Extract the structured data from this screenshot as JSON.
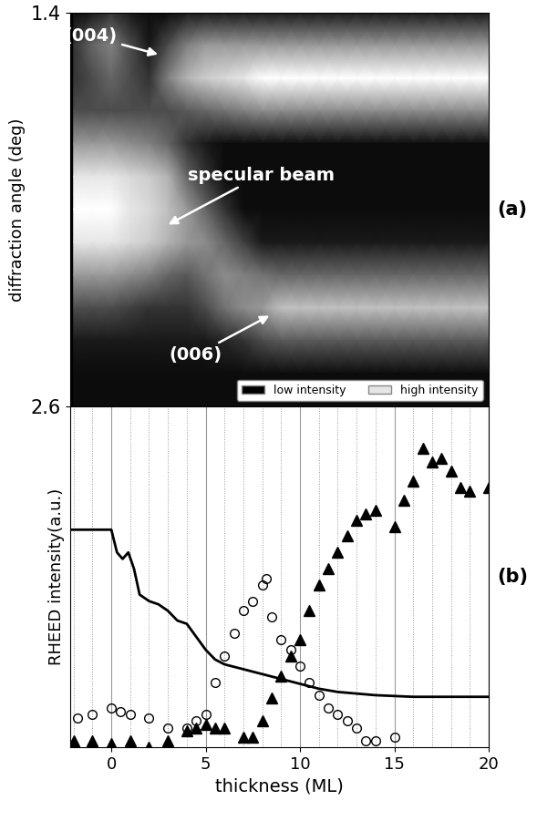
{
  "chart_data": [
    {
      "type": "heatmap",
      "panel_label": "(a)",
      "ylabel": "diffraction angle (deg)",
      "xlim": [
        -2.2,
        20
      ],
      "ylim": [
        2.6,
        1.4
      ],
      "yticks": [
        1.4,
        2.6
      ],
      "tick_labels": "y",
      "x": [
        -2,
        -1,
        0,
        1,
        2,
        3,
        4,
        5,
        6,
        7,
        8,
        9,
        10,
        11,
        12,
        13,
        14,
        15,
        16,
        17,
        18,
        19,
        20
      ],
      "y": [
        1.4,
        1.5,
        1.6,
        1.7,
        1.8,
        1.9,
        2.0,
        2.1,
        2.2,
        2.3,
        2.4,
        2.5,
        2.6
      ],
      "cells": [
        [
          0.05,
          0.1,
          0.2,
          0.1,
          0.05,
          0.05,
          0.1,
          0.1,
          0.1,
          0.1,
          0.1,
          0.1,
          0.1,
          0.1,
          0.1,
          0.1,
          0.1,
          0.1,
          0.1,
          0.1,
          0.1,
          0.1,
          0.1
        ],
        [
          0.2,
          0.4,
          0.5,
          0.3,
          0.1,
          0.3,
          0.5,
          0.6,
          0.6,
          0.6,
          0.6,
          0.6,
          0.6,
          0.6,
          0.6,
          0.6,
          0.6,
          0.6,
          0.6,
          0.6,
          0.6,
          0.6,
          0.6
        ],
        [
          0.2,
          0.3,
          0.4,
          0.3,
          0.2,
          0.5,
          0.7,
          0.8,
          0.85,
          0.9,
          1.0,
          1.0,
          1.0,
          1.0,
          1.0,
          1.0,
          1.0,
          1.0,
          1.0,
          1.0,
          1.0,
          1.0,
          1.0
        ],
        [
          0.3,
          0.3,
          0.3,
          0.3,
          0.3,
          0.3,
          0.35,
          0.4,
          0.45,
          0.5,
          0.55,
          0.55,
          0.55,
          0.55,
          0.55,
          0.55,
          0.55,
          0.55,
          0.55,
          0.55,
          0.55,
          0.55,
          0.55
        ],
        [
          0.6,
          0.6,
          0.6,
          0.55,
          0.5,
          0.4,
          0.2,
          0.1,
          0.05,
          0.05,
          0.05,
          0.05,
          0.05,
          0.05,
          0.05,
          0.05,
          0.05,
          0.05,
          0.05,
          0.05,
          0.05,
          0.05,
          0.05
        ],
        [
          0.9,
          0.9,
          0.9,
          0.85,
          0.8,
          0.7,
          0.4,
          0.2,
          0.05,
          0.05,
          0.05,
          0.05,
          0.05,
          0.05,
          0.05,
          0.05,
          0.05,
          0.05,
          0.05,
          0.05,
          0.05,
          0.05,
          0.05
        ],
        [
          1.0,
          1.0,
          1.0,
          0.9,
          0.85,
          0.75,
          0.6,
          0.4,
          0.2,
          0.05,
          0.05,
          0.05,
          0.05,
          0.05,
          0.05,
          0.05,
          0.05,
          0.05,
          0.05,
          0.05,
          0.05,
          0.05,
          0.05
        ],
        [
          0.9,
          0.9,
          0.9,
          0.85,
          0.8,
          0.7,
          0.6,
          0.55,
          0.4,
          0.25,
          0.1,
          0.1,
          0.1,
          0.1,
          0.1,
          0.1,
          0.1,
          0.1,
          0.1,
          0.1,
          0.1,
          0.1,
          0.1
        ],
        [
          0.6,
          0.6,
          0.6,
          0.55,
          0.5,
          0.4,
          0.35,
          0.45,
          0.55,
          0.5,
          0.45,
          0.4,
          0.4,
          0.4,
          0.4,
          0.4,
          0.4,
          0.4,
          0.4,
          0.4,
          0.4,
          0.4,
          0.4
        ],
        [
          0.3,
          0.3,
          0.3,
          0.25,
          0.2,
          0.2,
          0.2,
          0.3,
          0.45,
          0.55,
          0.6,
          0.75,
          0.75,
          0.75,
          0.75,
          0.75,
          0.75,
          0.75,
          0.75,
          0.75,
          0.75,
          0.75,
          0.75
        ],
        [
          0.1,
          0.1,
          0.1,
          0.1,
          0.1,
          0.1,
          0.1,
          0.1,
          0.15,
          0.2,
          0.3,
          0.35,
          0.35,
          0.35,
          0.35,
          0.35,
          0.35,
          0.35,
          0.35,
          0.35,
          0.35,
          0.35,
          0.35
        ],
        [
          0.05,
          0.05,
          0.05,
          0.05,
          0.05,
          0.05,
          0.05,
          0.05,
          0.05,
          0.05,
          0.05,
          0.05,
          0.05,
          0.05,
          0.05,
          0.05,
          0.05,
          0.05,
          0.05,
          0.05,
          0.05,
          0.05,
          0.05
        ],
        [
          0.05,
          0.05,
          0.05,
          0.05,
          0.05,
          0.05,
          0.05,
          0.05,
          0.05,
          0.05,
          0.05,
          0.05,
          0.05,
          0.05,
          0.05,
          0.05,
          0.05,
          0.05,
          0.05,
          0.05,
          0.05,
          0.05,
          0.05
        ]
      ],
      "color_range": [
        0,
        1
      ],
      "annotations": [
        {
          "text": "(004)",
          "x": 2.6,
          "y": 1.53
        },
        {
          "text": "specular beam",
          "x": 2.9,
          "y": 2.05
        },
        {
          "text": "(006)",
          "x": 8.5,
          "y": 2.32
        }
      ],
      "legend": "lower right",
      "legend_entries": [
        {
          "name": "low intensity",
          "color": "#000000"
        },
        {
          "name": "high intensity",
          "color": "#e6e6e6"
        }
      ]
    },
    {
      "type": "line",
      "panel_label": "(b)",
      "xlabel": "thickness (ML)",
      "ylabel": "RHEED intensity(a.u.)",
      "xlim": [
        -2.2,
        20
      ],
      "ylim": [
        0,
        1.05
      ],
      "xticks": [
        0,
        5,
        10,
        15,
        20
      ],
      "tick_labels": "x",
      "grid": true,
      "series": [
        {
          "type": "line",
          "color": "#000000",
          "x": [
            -2.2,
            -1,
            0,
            0.3,
            0.6,
            0.9,
            1.2,
            1.5,
            2,
            2.5,
            3,
            3.5,
            4,
            4.5,
            5,
            5.5,
            6,
            7,
            8,
            9,
            10,
            11,
            12,
            14,
            16,
            18,
            20
          ],
          "values": [
            0.67,
            0.67,
            0.67,
            0.6,
            0.58,
            0.6,
            0.55,
            0.47,
            0.45,
            0.44,
            0.42,
            0.39,
            0.38,
            0.34,
            0.3,
            0.27,
            0.255,
            0.24,
            0.225,
            0.21,
            0.195,
            0.18,
            0.17,
            0.16,
            0.155,
            0.155,
            0.155
          ]
        },
        {
          "type": "scatter",
          "marker": "open_circle",
          "color": "#000000",
          "x": [
            -1.8,
            -1,
            0,
            0.5,
            1,
            2,
            3,
            4,
            4.5,
            5,
            5.5,
            6,
            6.5,
            7,
            7.5,
            8,
            8.2,
            8.5,
            9,
            9.5,
            10,
            10.5,
            11,
            11.5,
            12,
            12.5,
            13,
            13.5,
            14,
            15
          ],
          "values": [
            0.09,
            0.1,
            0.12,
            0.11,
            0.1,
            0.09,
            0.06,
            0.06,
            0.08,
            0.1,
            0.2,
            0.28,
            0.35,
            0.42,
            0.45,
            0.5,
            0.52,
            0.4,
            0.33,
            0.3,
            0.25,
            0.2,
            0.16,
            0.12,
            0.1,
            0.08,
            0.06,
            0.02,
            0.02,
            0.03
          ]
        },
        {
          "type": "scatter",
          "marker": "triangle",
          "color": "#000000",
          "x": [
            -2,
            -1,
            0,
            1,
            2,
            3,
            4,
            4.5,
            5,
            5.5,
            6,
            7,
            7.5,
            8,
            8.5,
            9,
            9.5,
            10,
            10.5,
            11,
            11.5,
            12,
            12.5,
            13,
            13.5,
            14,
            15,
            15.5,
            16,
            16.5,
            17,
            17.5,
            18,
            18.5,
            19,
            20
          ],
          "values": [
            0.02,
            0.02,
            0.01,
            0.02,
            0.0,
            0.02,
            0.05,
            0.06,
            0.07,
            0.06,
            0.06,
            0.03,
            0.03,
            0.08,
            0.15,
            0.22,
            0.28,
            0.33,
            0.42,
            0.5,
            0.55,
            0.6,
            0.65,
            0.7,
            0.72,
            0.73,
            0.68,
            0.76,
            0.82,
            0.92,
            0.88,
            0.89,
            0.85,
            0.8,
            0.79,
            0.8
          ]
        }
      ]
    }
  ]
}
